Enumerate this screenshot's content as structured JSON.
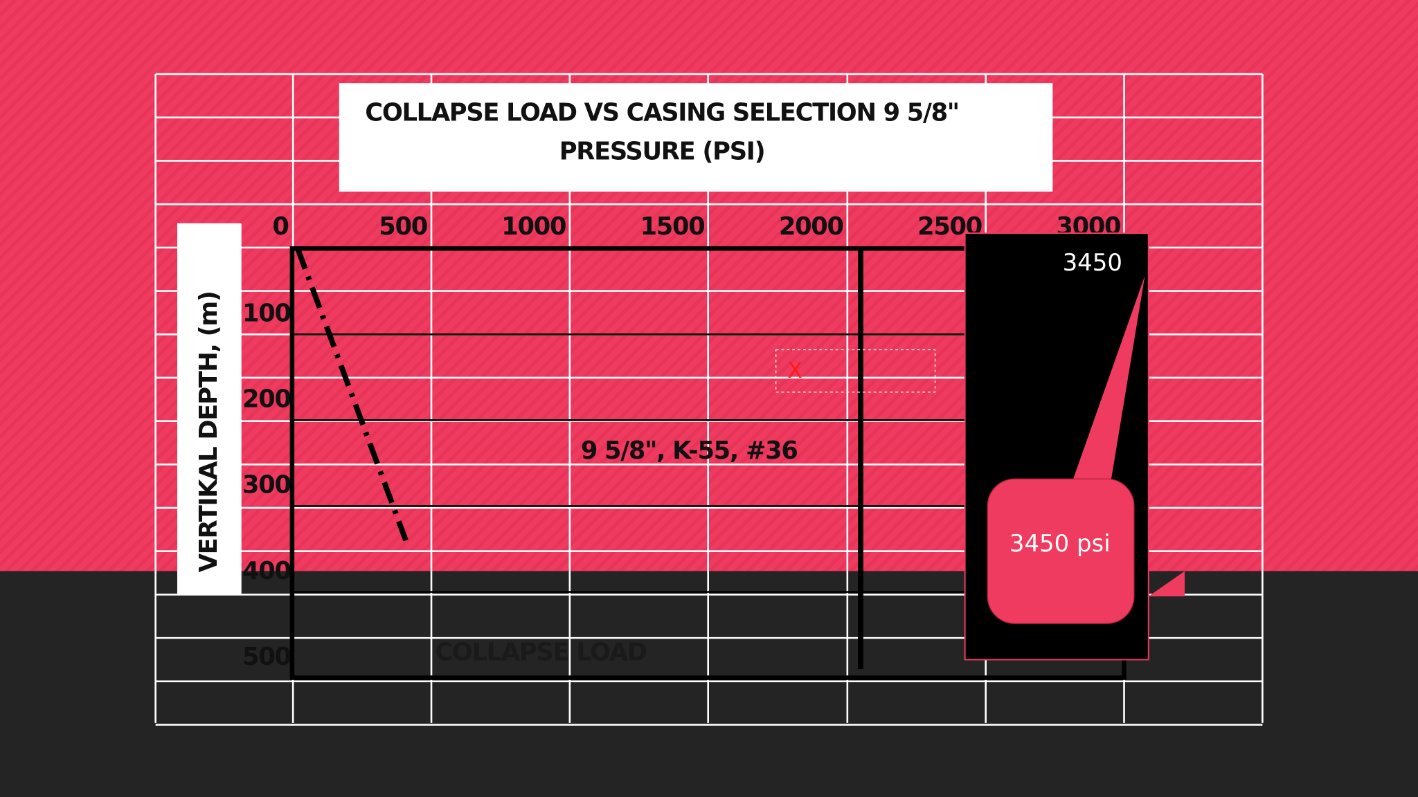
{
  "chart_data": {
    "type": "line",
    "title": "COLLAPSE LOAD VS  CASING SELECTION 9 5/8\"",
    "x_label": "PRESSURE (PSI)",
    "y_label": "VERTIKAL DEPTH, (m)",
    "xlim": [
      0,
      3000
    ],
    "xticks": [
      0,
      500,
      1000,
      1500,
      2000,
      2500,
      3000
    ],
    "ylim": [
      0,
      500
    ],
    "yticks": [
      100,
      200,
      300,
      400,
      500
    ],
    "y_inverted": true,
    "grid": true,
    "series": [
      {
        "name": "COLLAPSE LOAD",
        "color": "#000000",
        "dash": "dashdot",
        "x": [
          20,
          410
        ],
        "values": [
          0,
          340
        ]
      },
      {
        "name": "9 5/8\", K-55, #36",
        "color": "#000000",
        "dash": "solid",
        "x": [
          2050,
          2050
        ],
        "values": [
          0,
          490
        ]
      }
    ],
    "annotations": [
      "3450",
      "3450 psi",
      "X"
    ]
  }
}
